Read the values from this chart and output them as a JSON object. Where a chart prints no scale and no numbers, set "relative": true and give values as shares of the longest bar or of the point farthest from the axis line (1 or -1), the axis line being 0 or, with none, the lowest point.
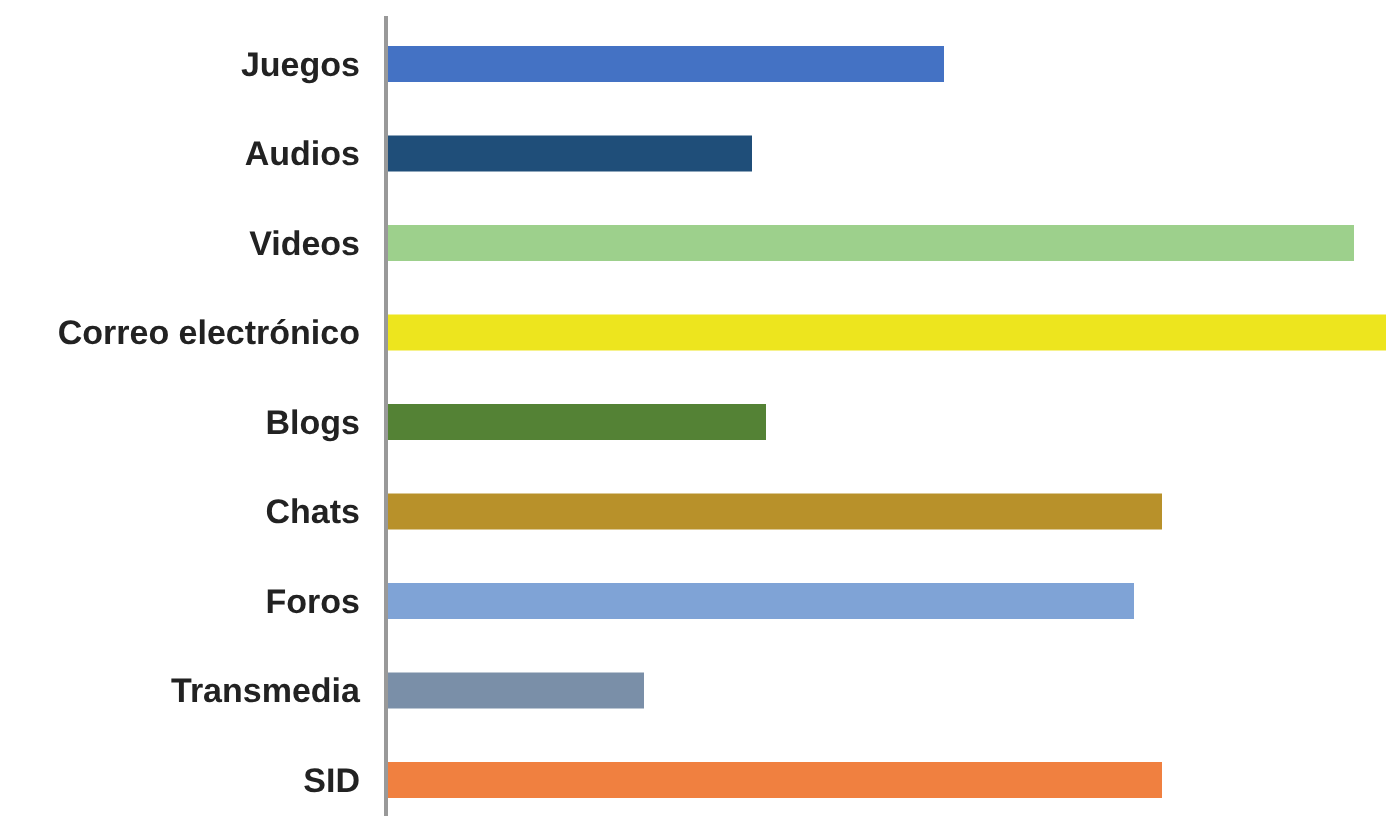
{
  "chart_data": {
    "type": "bar",
    "orientation": "horizontal",
    "categories": [
      "Juegos",
      "Audios",
      "Videos",
      "Correo electrónico",
      "Blogs",
      "Chats",
      "Foros",
      "Transmedia",
      "SID"
    ],
    "values": [
      0.558,
      0.366,
      0.968,
      1,
      0.38,
      0.776,
      0.748,
      0.258,
      0.776
    ],
    "colors": [
      "#4472c4",
      "#1f4e79",
      "#9dd08c",
      "#ede51e",
      "#548235",
      "#b8912a",
      "#7fa3d6",
      "#7a8fa8",
      "#f08040"
    ],
    "relative": true
  }
}
